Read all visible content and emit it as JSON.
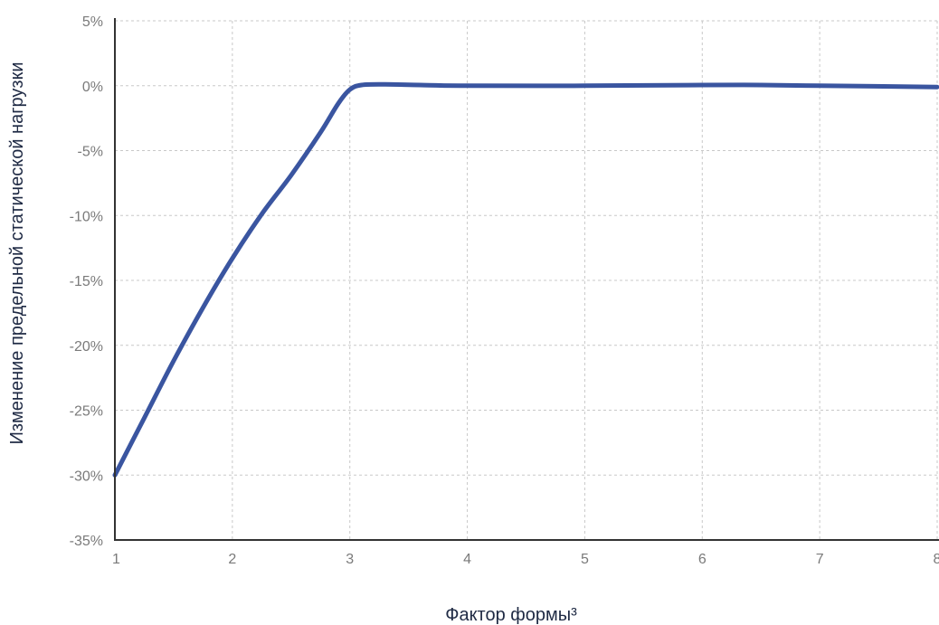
{
  "chart_data": {
    "type": "line",
    "xlabel": "Фактор формы³",
    "ylabel": "Изменение предельной статической нагрузки",
    "xlim": [
      1,
      8
    ],
    "ylim": [
      -35,
      5
    ],
    "x_ticks": [
      "1",
      "2",
      "3",
      "4",
      "5",
      "6",
      "7",
      "8"
    ],
    "y_ticks": [
      "5%",
      "0%",
      "-5%",
      "-10%",
      "-15%",
      "-20%",
      "-25%",
      "-30%",
      "-35%"
    ],
    "grid": true,
    "series": [
      {
        "color": "#3a55a0",
        "points": [
          [
            1.0,
            -30.0
          ],
          [
            1.25,
            -25.6
          ],
          [
            1.5,
            -21.2
          ],
          [
            1.75,
            -17.1
          ],
          [
            2.0,
            -13.3
          ],
          [
            2.25,
            -9.9
          ],
          [
            2.5,
            -6.9
          ],
          [
            2.75,
            -3.6
          ],
          [
            2.9,
            -1.4
          ],
          [
            3.0,
            -0.3
          ],
          [
            3.1,
            0.05
          ],
          [
            3.3,
            0.1
          ],
          [
            3.6,
            0.05
          ],
          [
            4.0,
            0.0
          ],
          [
            5.0,
            0.0
          ],
          [
            6.0,
            0.05
          ],
          [
            6.5,
            0.05
          ],
          [
            7.0,
            0.0
          ],
          [
            8.0,
            -0.1
          ]
        ]
      }
    ]
  }
}
